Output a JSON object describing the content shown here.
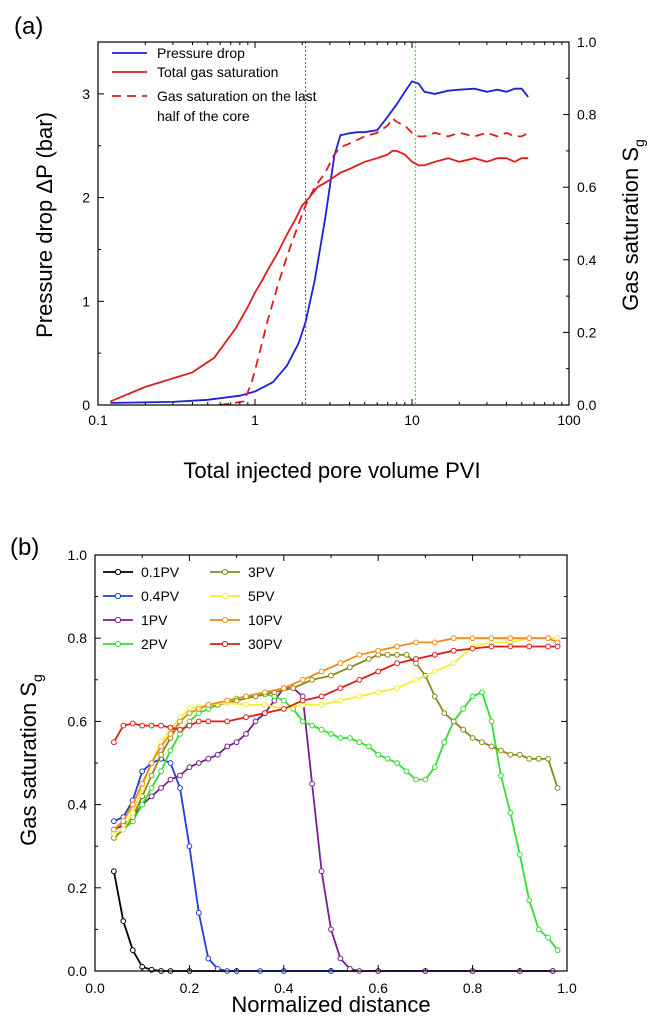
{
  "chart_data": [
    {
      "panel_label": "(a)",
      "type": "line",
      "xscale": "log",
      "xlim": [
        0.1,
        100
      ],
      "xticks": [
        "0.1",
        "1",
        "10",
        "100"
      ],
      "xlabel": "Total injected pore volume PVI",
      "ylabel_left": "Pressure drop ΔP (bar)",
      "ylim_left": [
        0,
        3.5
      ],
      "yticks_left": [
        "0",
        "1",
        "2",
        "3"
      ],
      "ylabel_right_main": "Gas saturation S",
      "ylabel_right_sub": "g",
      "ylim_right": [
        0,
        1.0
      ],
      "yticks_right": [
        "0.0",
        "0.2",
        "0.4",
        "0.6",
        "0.8",
        "1.0"
      ],
      "vlines": [
        {
          "x": 2.1,
          "color": "#555555"
        },
        {
          "x": 10.5,
          "color": "#33cc33"
        }
      ],
      "legend_position": "top-left",
      "series": [
        {
          "name": "Pressure drop",
          "axis": "left",
          "color": "#1f1fd6",
          "dash": "solid",
          "x": [
            0.12,
            0.3,
            0.5,
            0.8,
            1.0,
            1.3,
            1.6,
            1.9,
            2.1,
            2.4,
            2.8,
            3.2,
            3.5,
            4.0,
            4.5,
            5,
            6,
            7,
            8,
            9,
            10,
            11,
            12,
            14,
            17,
            20,
            25,
            30,
            35,
            40,
            45,
            50,
            55
          ],
          "y": [
            0.02,
            0.03,
            0.05,
            0.09,
            0.13,
            0.22,
            0.38,
            0.6,
            0.8,
            1.2,
            1.8,
            2.4,
            2.6,
            2.62,
            2.63,
            2.63,
            2.65,
            2.78,
            2.9,
            3.02,
            3.12,
            3.1,
            3.02,
            3.0,
            3.03,
            3.04,
            3.05,
            3.02,
            3.04,
            3.02,
            3.05,
            3.05,
            2.97
          ]
        },
        {
          "name": "Total gas saturation",
          "axis": "right",
          "color": "#e01b1b",
          "dash": "solid",
          "x": [
            0.12,
            0.2,
            0.4,
            0.55,
            0.75,
            0.9,
            1.0,
            1.1,
            1.2,
            1.4,
            1.6,
            1.8,
            2.0,
            2.2,
            2.5,
            3.0,
            3.5,
            4,
            5,
            6,
            7,
            7.5,
            8,
            9,
            10,
            11,
            12,
            14,
            17,
            20,
            25,
            30,
            35,
            40,
            45,
            50,
            55
          ],
          "y": [
            0.01,
            0.05,
            0.09,
            0.13,
            0.21,
            0.27,
            0.31,
            0.34,
            0.37,
            0.42,
            0.47,
            0.51,
            0.55,
            0.57,
            0.6,
            0.62,
            0.64,
            0.65,
            0.67,
            0.68,
            0.69,
            0.7,
            0.7,
            0.69,
            0.67,
            0.66,
            0.66,
            0.67,
            0.68,
            0.67,
            0.68,
            0.67,
            0.68,
            0.68,
            0.67,
            0.68,
            0.68
          ]
        },
        {
          "name": "Gas saturation on the last half of the core",
          "axis": "right",
          "color": "#e01b1b",
          "dash": "dashed",
          "x": [
            0.6,
            0.85,
            0.95,
            1.05,
            1.2,
            1.4,
            1.6,
            1.9,
            2.1,
            2.4,
            2.8,
            3.2,
            3.5,
            4,
            5,
            6,
            7,
            7.5,
            8,
            9,
            10,
            11,
            12,
            14,
            17,
            20,
            25,
            30,
            35,
            40,
            45,
            50,
            55
          ],
          "y": [
            0.0,
            0.01,
            0.06,
            0.13,
            0.23,
            0.33,
            0.41,
            0.5,
            0.55,
            0.6,
            0.64,
            0.69,
            0.71,
            0.72,
            0.74,
            0.75,
            0.77,
            0.79,
            0.78,
            0.77,
            0.75,
            0.74,
            0.74,
            0.75,
            0.74,
            0.75,
            0.74,
            0.75,
            0.74,
            0.75,
            0.74,
            0.74,
            0.75
          ]
        }
      ]
    },
    {
      "panel_label": "(b)",
      "type": "line",
      "xlim": [
        0.0,
        1.0
      ],
      "xticks": [
        "0.0",
        "0.2",
        "0.4",
        "0.6",
        "0.8",
        "1.0"
      ],
      "xlabel": "Normalized distance",
      "ylabel_main": "Gas saturation S",
      "ylabel_sub": "g",
      "ylim": [
        0.0,
        1.0
      ],
      "yticks": [
        "0.0",
        "0.2",
        "0.4",
        "0.6",
        "0.8",
        "1.0"
      ],
      "legend_position": "top-left",
      "series": [
        {
          "name": "0.1PV",
          "color": "#000000",
          "x": [
            0.04,
            0.06,
            0.08,
            0.1,
            0.12,
            0.14,
            0.16,
            0.2,
            0.3,
            0.4,
            0.5,
            0.6,
            0.7,
            0.8,
            0.9,
            0.97
          ],
          "y": [
            0.24,
            0.12,
            0.05,
            0.01,
            0.003,
            0.0,
            0.0,
            0.0,
            0.0,
            0.0,
            0.0,
            0.0,
            0.0,
            0.0,
            0.0,
            0.0
          ]
        },
        {
          "name": "0.4PV",
          "color": "#1f3fd6",
          "x": [
            0.04,
            0.06,
            0.08,
            0.1,
            0.12,
            0.14,
            0.16,
            0.18,
            0.2,
            0.22,
            0.24,
            0.26,
            0.28,
            0.3,
            0.35,
            0.4,
            0.5,
            0.6,
            0.7,
            0.8,
            0.9,
            0.97
          ],
          "y": [
            0.36,
            0.37,
            0.41,
            0.48,
            0.5,
            0.51,
            0.5,
            0.44,
            0.3,
            0.14,
            0.03,
            0.005,
            0.0,
            0.0,
            0.0,
            0.0,
            0.0,
            0.0,
            0.0,
            0.0,
            0.0,
            0.0
          ]
        },
        {
          "name": "1PV",
          "color": "#7a1f8c",
          "x": [
            0.04,
            0.06,
            0.08,
            0.1,
            0.12,
            0.14,
            0.16,
            0.18,
            0.2,
            0.22,
            0.24,
            0.26,
            0.28,
            0.3,
            0.32,
            0.34,
            0.36,
            0.38,
            0.4,
            0.42,
            0.44,
            0.46,
            0.48,
            0.5,
            0.52,
            0.54,
            0.56,
            0.6,
            0.7,
            0.8,
            0.9,
            0.97
          ],
          "y": [
            0.34,
            0.35,
            0.37,
            0.4,
            0.42,
            0.44,
            0.46,
            0.47,
            0.49,
            0.5,
            0.51,
            0.52,
            0.54,
            0.55,
            0.57,
            0.6,
            0.62,
            0.65,
            0.68,
            0.68,
            0.66,
            0.45,
            0.24,
            0.1,
            0.03,
            0.005,
            0.0,
            0.0,
            0.0,
            0.0,
            0.0,
            0.0
          ]
        },
        {
          "name": "2PV",
          "color": "#33dd33",
          "x": [
            0.04,
            0.06,
            0.08,
            0.1,
            0.12,
            0.14,
            0.16,
            0.18,
            0.2,
            0.22,
            0.24,
            0.26,
            0.28,
            0.3,
            0.32,
            0.34,
            0.36,
            0.38,
            0.4,
            0.42,
            0.44,
            0.46,
            0.48,
            0.5,
            0.52,
            0.54,
            0.56,
            0.58,
            0.6,
            0.62,
            0.64,
            0.66,
            0.68,
            0.7,
            0.72,
            0.74,
            0.76,
            0.78,
            0.8,
            0.82,
            0.84,
            0.86,
            0.88,
            0.9,
            0.92,
            0.94,
            0.96,
            0.98
          ],
          "y": [
            0.33,
            0.34,
            0.36,
            0.4,
            0.44,
            0.48,
            0.53,
            0.57,
            0.6,
            0.62,
            0.63,
            0.64,
            0.65,
            0.655,
            0.66,
            0.66,
            0.665,
            0.66,
            0.65,
            0.63,
            0.6,
            0.59,
            0.58,
            0.57,
            0.56,
            0.56,
            0.55,
            0.54,
            0.52,
            0.51,
            0.5,
            0.48,
            0.46,
            0.46,
            0.49,
            0.55,
            0.6,
            0.63,
            0.66,
            0.67,
            0.6,
            0.47,
            0.38,
            0.28,
            0.17,
            0.1,
            0.08,
            0.05
          ]
        },
        {
          "name": "3PV",
          "color": "#8a8a1a",
          "x": [
            0.04,
            0.06,
            0.08,
            0.1,
            0.12,
            0.14,
            0.16,
            0.18,
            0.2,
            0.22,
            0.24,
            0.26,
            0.28,
            0.3,
            0.34,
            0.38,
            0.42,
            0.46,
            0.5,
            0.54,
            0.58,
            0.6,
            0.62,
            0.64,
            0.66,
            0.68,
            0.7,
            0.72,
            0.74,
            0.76,
            0.78,
            0.8,
            0.82,
            0.84,
            0.86,
            0.88,
            0.9,
            0.92,
            0.94,
            0.96,
            0.98
          ],
          "y": [
            0.32,
            0.34,
            0.37,
            0.42,
            0.47,
            0.52,
            0.56,
            0.6,
            0.62,
            0.63,
            0.64,
            0.64,
            0.645,
            0.65,
            0.66,
            0.67,
            0.68,
            0.7,
            0.71,
            0.73,
            0.75,
            0.76,
            0.76,
            0.76,
            0.76,
            0.74,
            0.71,
            0.66,
            0.62,
            0.6,
            0.58,
            0.56,
            0.55,
            0.54,
            0.53,
            0.52,
            0.52,
            0.51,
            0.51,
            0.51,
            0.44
          ]
        },
        {
          "name": "5PV",
          "color": "#f0f030",
          "x": [
            0.04,
            0.06,
            0.08,
            0.1,
            0.12,
            0.14,
            0.16,
            0.18,
            0.2,
            0.22,
            0.24,
            0.28,
            0.32,
            0.36,
            0.4,
            0.44,
            0.48,
            0.52,
            0.56,
            0.6,
            0.64,
            0.68,
            0.72,
            0.76,
            0.8,
            0.84,
            0.88,
            0.92,
            0.96,
            0.98
          ],
          "y": [
            0.33,
            0.34,
            0.38,
            0.44,
            0.5,
            0.55,
            0.58,
            0.61,
            0.63,
            0.635,
            0.64,
            0.645,
            0.64,
            0.64,
            0.63,
            0.64,
            0.64,
            0.65,
            0.66,
            0.67,
            0.68,
            0.7,
            0.72,
            0.74,
            0.78,
            0.79,
            0.79,
            0.8,
            0.8,
            0.8
          ]
        },
        {
          "name": "10PV",
          "color": "#f08a1a",
          "x": [
            0.04,
            0.06,
            0.08,
            0.1,
            0.12,
            0.14,
            0.16,
            0.18,
            0.2,
            0.22,
            0.24,
            0.28,
            0.32,
            0.36,
            0.4,
            0.44,
            0.48,
            0.52,
            0.56,
            0.6,
            0.64,
            0.68,
            0.72,
            0.76,
            0.8,
            0.84,
            0.88,
            0.92,
            0.96,
            0.98
          ],
          "y": [
            0.34,
            0.36,
            0.4,
            0.45,
            0.5,
            0.54,
            0.57,
            0.6,
            0.62,
            0.63,
            0.64,
            0.65,
            0.66,
            0.67,
            0.68,
            0.7,
            0.72,
            0.74,
            0.76,
            0.77,
            0.78,
            0.79,
            0.79,
            0.8,
            0.8,
            0.8,
            0.8,
            0.8,
            0.8,
            0.79
          ]
        },
        {
          "name": "30PV",
          "color": "#e01b1b",
          "x": [
            0.04,
            0.06,
            0.08,
            0.1,
            0.12,
            0.14,
            0.16,
            0.18,
            0.2,
            0.22,
            0.24,
            0.28,
            0.32,
            0.36,
            0.4,
            0.44,
            0.48,
            0.52,
            0.56,
            0.6,
            0.64,
            0.68,
            0.72,
            0.76,
            0.8,
            0.84,
            0.88,
            0.92,
            0.96,
            0.98
          ],
          "y": [
            0.55,
            0.59,
            0.595,
            0.59,
            0.59,
            0.59,
            0.585,
            0.58,
            0.59,
            0.6,
            0.6,
            0.6,
            0.61,
            0.62,
            0.63,
            0.65,
            0.66,
            0.68,
            0.7,
            0.72,
            0.74,
            0.75,
            0.76,
            0.77,
            0.775,
            0.78,
            0.78,
            0.78,
            0.78,
            0.78
          ]
        }
      ]
    }
  ]
}
